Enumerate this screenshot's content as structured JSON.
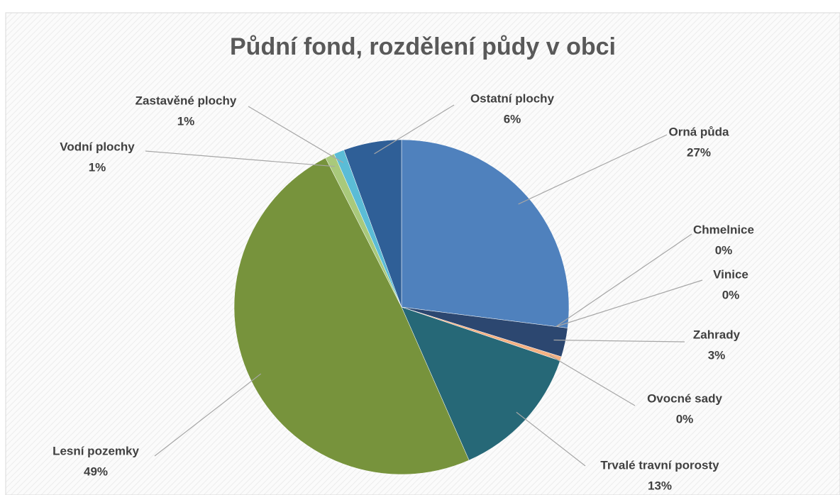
{
  "chart_data": {
    "type": "pie",
    "title": "Půdní fond, rozdělení půdy v obci",
    "categories": [
      "Orná půda",
      "Chmelnice",
      "Vinice",
      "Zahrady",
      "Ovocné sady",
      "Trvalé travní porosty",
      "Lesní pozemky",
      "Vodní plochy",
      "Zastavěné plochy",
      "Ostatní plochy"
    ],
    "values": [
      27,
      0,
      0,
      2.8,
      0.4,
      13.2,
      49.1,
      0.9,
      1,
      5.6
    ],
    "value_labels": [
      "27%",
      "0%",
      "0%",
      "3%",
      "0%",
      "13%",
      "49%",
      "1%",
      "1%",
      "6%"
    ],
    "colors": [
      "#4f81bd",
      "#8064a2",
      "#9bbb59",
      "#2c4770",
      "#f4b183",
      "#266877",
      "#77933c",
      "#a9c97b",
      "#5bbcd6",
      "#2f5f97"
    ]
  }
}
